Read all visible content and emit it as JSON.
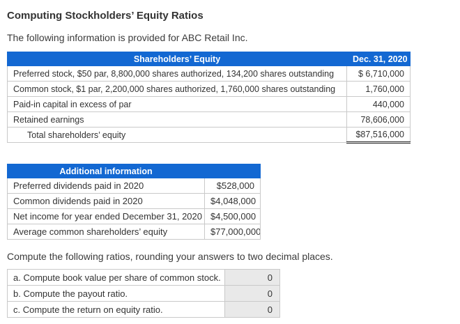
{
  "page": {
    "title": "Computing Stockholders’ Equity Ratios",
    "intro": "The following information is provided for ABC Retail Inc.",
    "instructions": "Compute the following ratios, rounding your answers to two decimal places."
  },
  "colors": {
    "header_blue": "#1368d2",
    "answer_cell_gray": "#e9e9e9",
    "border_gray": "#c9c9c9",
    "text_dark": "#333333"
  },
  "equity_table": {
    "header": {
      "label": "Shareholders’ Equity",
      "value": "Dec. 31, 2020"
    },
    "rows": [
      {
        "label": "Preferred stock, $50 par, 8,800,000 shares authorized, 134,200 shares outstanding",
        "value": "$ 6,710,000"
      },
      {
        "label": "Common stock, $1 par, 2,200,000 shares authorized, 1,760,000 shares outstanding",
        "value": "1,760,000"
      },
      {
        "label": "Paid-in capital in excess of par",
        "value": "440,000"
      },
      {
        "label": "Retained earnings",
        "value": "78,606,000"
      }
    ],
    "total": {
      "label": "Total shareholders’ equity",
      "value": "$87,516,000"
    }
  },
  "additional_table": {
    "header": "Additional information",
    "rows": [
      {
        "label": "Preferred dividends paid in 2020",
        "value": "$528,000"
      },
      {
        "label": "Common dividends paid in 2020",
        "value": "$4,048,000"
      },
      {
        "label": "Net income for year ended December 31, 2020",
        "value": "$4,500,000"
      },
      {
        "label": "Average common shareholders’ equity",
        "value": "$77,000,000"
      }
    ]
  },
  "answers_table": {
    "rows": [
      {
        "label": "a. Compute book value per share of common stock.",
        "value": "0"
      },
      {
        "label": "b. Compute the payout ratio.",
        "value": "0"
      },
      {
        "label": "c. Compute the return on equity ratio.",
        "value": "0"
      }
    ]
  }
}
